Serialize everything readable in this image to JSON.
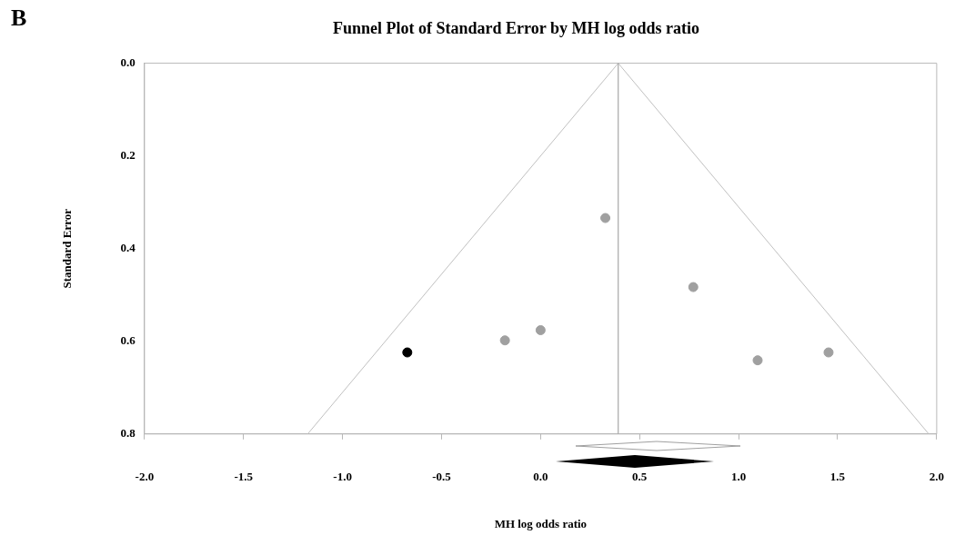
{
  "chart_data": {
    "type": "scatter",
    "title": "Funnel Plot of Standard Error by MH log odds ratio",
    "xlabel": "MH log odds ratio",
    "ylabel": "Standard Error",
    "annotations": [
      "B"
    ],
    "xlim": [
      -2.0,
      2.0
    ],
    "xticks": [
      {
        "value": -2,
        "label": "-2.0"
      },
      {
        "value": -1.5,
        "label": "-1.5"
      },
      {
        "value": -1,
        "label": "-1.0"
      },
      {
        "value": -0.5,
        "label": "-0.5"
      },
      {
        "value": 0,
        "label": "0.0"
      },
      {
        "value": 0.5,
        "label": "0.5"
      },
      {
        "value": 1,
        "label": "1.0"
      },
      {
        "value": 1.5,
        "label": "1.5"
      },
      {
        "value": 2,
        "label": "2.0"
      }
    ],
    "ylim": [
      0.8,
      0.0
    ],
    "yticks": [
      {
        "value": 0,
        "label": "0.0"
      },
      {
        "value": 0.2,
        "label": "0.2"
      },
      {
        "value": 0.4,
        "label": "0.4"
      },
      {
        "value": 0.6,
        "label": "0.6"
      },
      {
        "value": 0.8,
        "label": "0.8"
      }
    ],
    "grid": false,
    "legend": false,
    "marker": "circle",
    "ref_lines": [
      {
        "axis": "x",
        "value": 0.392,
        "color": "#a8a8a8"
      }
    ],
    "series": [
      {
        "type": "line",
        "color": "#c0c0c0",
        "x": [
          -1.176,
          0.392,
          1.96
        ],
        "values": [
          0.8,
          0.0,
          0.8
        ],
        "marker": "none"
      },
      {
        "type": "scatter",
        "color": "#a0a0a0",
        "x": [
          -0.18,
          0.0,
          0.327,
          0.771,
          1.096,
          1.454
        ],
        "values": [
          0.598,
          0.576,
          0.334,
          0.483,
          0.641,
          0.624
        ]
      },
      {
        "type": "scatter",
        "color": "#000000",
        "x": [
          -0.673
        ],
        "values": [
          0.624
        ]
      }
    ]
  }
}
